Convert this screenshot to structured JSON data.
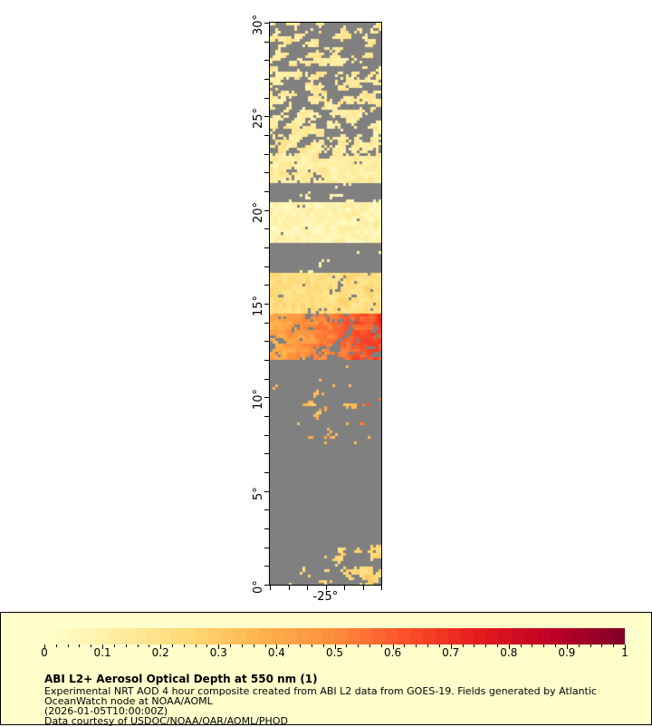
{
  "map": {
    "lat_ticks": [
      "0°",
      "5°",
      "10°",
      "15°",
      "20°",
      "25°",
      "30°"
    ],
    "lat_range": [
      0,
      30
    ],
    "lon_ticks": [
      "-25°"
    ],
    "lon_range": [
      -28,
      -22
    ],
    "colors": {
      "no_data": "#808080",
      "land": "#bfbfbf"
    }
  },
  "colorbar": {
    "range": [
      0,
      1
    ],
    "labels": [
      "0",
      "0.1",
      "0.2",
      "0.3",
      "0.4",
      "0.5",
      "0.6",
      "0.7",
      "0.8",
      "0.9",
      "1"
    ],
    "palette": [
      "#ffffcc",
      "#ffeda0",
      "#fed976",
      "#feb24c",
      "#fd8d3c",
      "#fc4e2a",
      "#e31a1c",
      "#bd0026",
      "#800026"
    ]
  },
  "legend": {
    "title": "ABI L2+ Aerosol Optical Depth at 550 nm (1)",
    "line1": "Experimental NRT AOD 4 hour composite created from ABI L2 data from GOES-19. Fields generated by Atlantic",
    "line2": "OceanWatch node at NOAA/AOML",
    "line3": "(2026-01-05T10:00:00Z)",
    "line4": "Data courtesy of USDOC/NOAA/OAR/AOML/PHOD",
    "background": "#ffffcc"
  }
}
